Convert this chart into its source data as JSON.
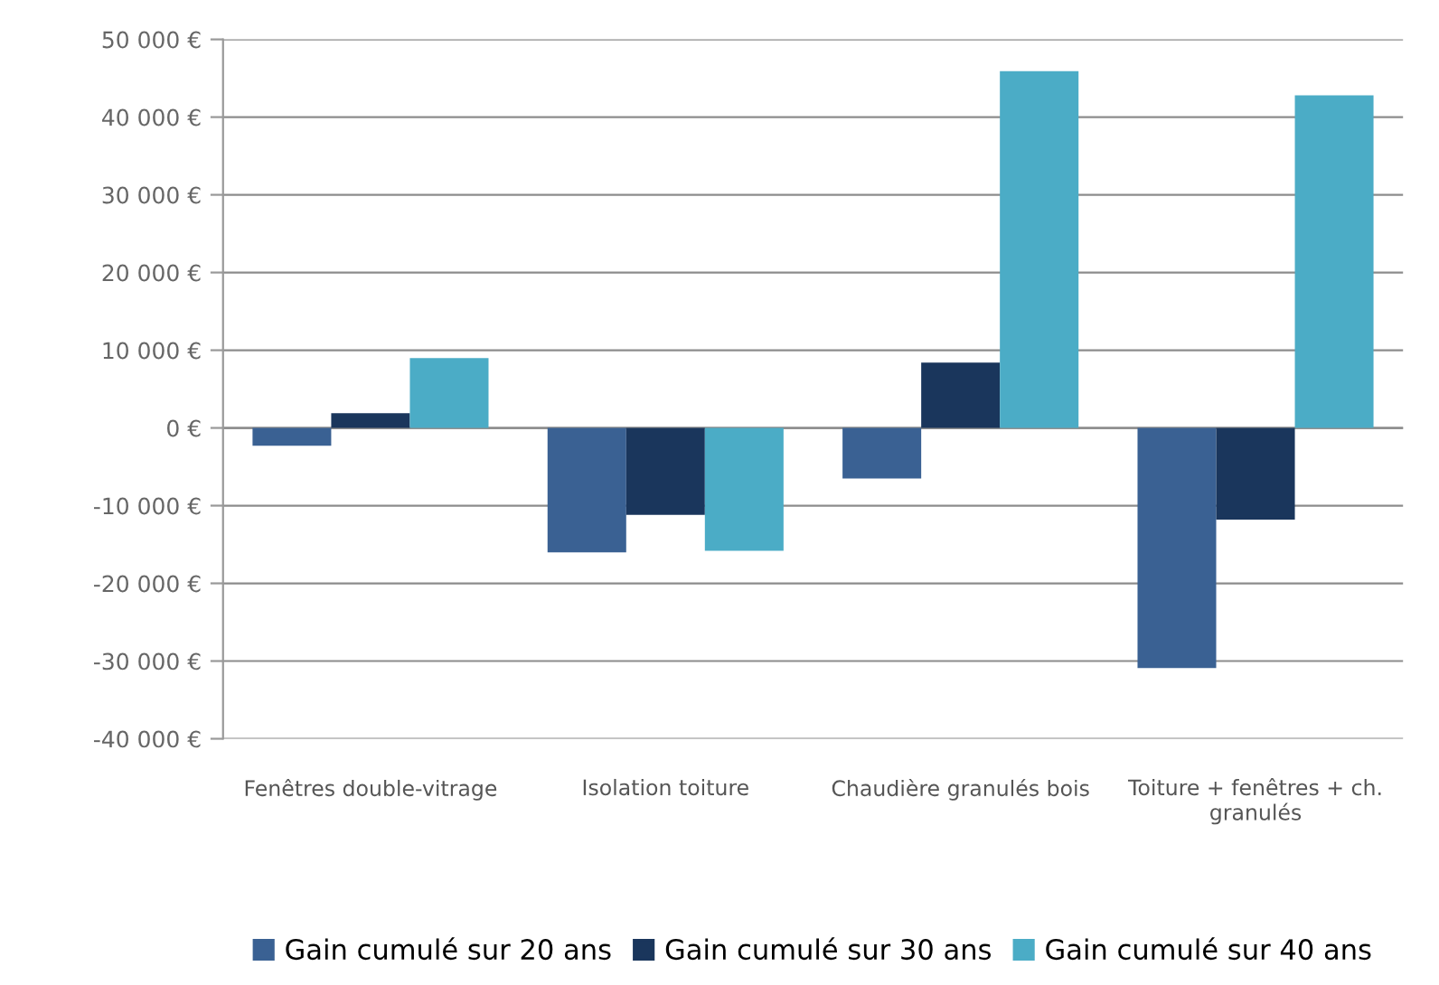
{
  "chart_data": {
    "type": "bar",
    "categories": [
      "Fenêtres double-vitrage",
      "Isolation toiture",
      "Chaudière granulés bois",
      "Toiture + fenêtres + ch. granulés"
    ],
    "series": [
      {
        "name": "Gain cumulé sur 20 ans",
        "color": "#3a6193",
        "values": [
          -2300,
          -16000,
          -6500,
          -30900
        ]
      },
      {
        "name": "Gain cumulé sur 30 ans",
        "color": "#1a365c",
        "values": [
          1900,
          -11200,
          8400,
          -11800
        ]
      },
      {
        "name": "Gain cumulé sur 40 ans",
        "color": "#4bacc6",
        "values": [
          9000,
          -15800,
          45900,
          42800
        ]
      }
    ],
    "ylim": [
      -40000,
      50000
    ],
    "yticks": [
      {
        "value": -40000,
        "label": "-40 000 €"
      },
      {
        "value": -30000,
        "label": "-30 000 €"
      },
      {
        "value": -20000,
        "label": "-20 000 €"
      },
      {
        "value": -10000,
        "label": "-10 000 €"
      },
      {
        "value": 0,
        "label": "0 €"
      },
      {
        "value": 10000,
        "label": "10 000 €"
      },
      {
        "value": 20000,
        "label": "20 000 €"
      },
      {
        "value": 30000,
        "label": "30 000 €"
      },
      {
        "value": 40000,
        "label": "40 000 €"
      },
      {
        "value": 50000,
        "label": "50 000 €"
      }
    ],
    "grid": "y",
    "legend": "bottom"
  }
}
